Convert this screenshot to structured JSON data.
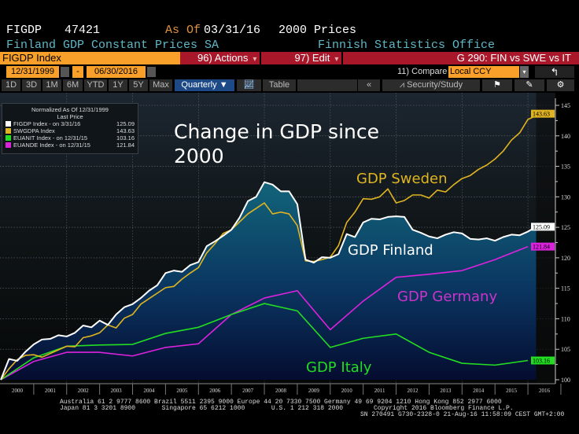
{
  "header": {
    "ticker": "FIGDP",
    "value": "47421",
    "as_of_label": "As Of",
    "as_of_date": "03/31/16",
    "price_basis": "2000 Prices",
    "description": "Finland GDP Constant Prices SA",
    "source": "Finnish Statistics Office"
  },
  "command_bar": {
    "security": "FIGDP Index",
    "actions": "96) Actions",
    "edit": "97) Edit",
    "chart_title": "G 290: FIN vs SWE vs IT"
  },
  "date_bar": {
    "start_date": "12/31/1999",
    "separator": "-",
    "end_date": "06/30/2016",
    "compare_label": "11) Compare",
    "currency": "Local CCY"
  },
  "toolbar": {
    "periods": [
      "1D",
      "3D",
      "1M",
      "6M",
      "YTD",
      "1Y",
      "5Y",
      "Max"
    ],
    "frequency": "Quarterly",
    "table_label": "Table",
    "collapse_label": "«",
    "security_study": "Security/Study"
  },
  "legend": {
    "title": "Normalized As Of 12/31/1999",
    "subtitle": "Last Price",
    "items": [
      {
        "name": "FIGDP Index -  on 3/31/16",
        "value": "125.09",
        "color": "#ffffff"
      },
      {
        "name": "SWGDPA Index",
        "value": "143.63",
        "color": "#e0b420"
      },
      {
        "name": "EUANIT Index -  on 12/31/15",
        "value": "103.16",
        "color": "#22dd22"
      },
      {
        "name": "EUANDE Index -  on 12/31/15",
        "value": "121.84",
        "color": "#dd22dd"
      }
    ]
  },
  "annotations": {
    "title_line1": "Change in GDP since",
    "title_line2": "2000",
    "sweden": "GDP Sweden",
    "finland": "GDP Finland",
    "germany": "GDP Germany",
    "italy": "GDP Italy"
  },
  "chart_data": {
    "type": "line",
    "ylim": [
      100,
      145
    ],
    "yticks": [
      100,
      105,
      110,
      115,
      120,
      125,
      130,
      135,
      140,
      145
    ],
    "xtick_labels": [
      "2000",
      "2001",
      "2002",
      "2003",
      "2004",
      "2005",
      "2006",
      "2007",
      "2008",
      "2009",
      "2010",
      "2011",
      "2012",
      "2013",
      "2014",
      "2015",
      "2016"
    ],
    "grid": true,
    "legend_position": "top-left",
    "quarters": [
      "1999Q4",
      "2000Q1",
      "2000Q2",
      "2000Q3",
      "2000Q4",
      "2001Q1",
      "2001Q2",
      "2001Q3",
      "2001Q4",
      "2002Q1",
      "2002Q2",
      "2002Q3",
      "2002Q4",
      "2003Q1",
      "2003Q2",
      "2003Q3",
      "2003Q4",
      "2004Q1",
      "2004Q2",
      "2004Q3",
      "2004Q4",
      "2005Q1",
      "2005Q2",
      "2005Q3",
      "2005Q4",
      "2006Q1",
      "2006Q2",
      "2006Q3",
      "2006Q4",
      "2007Q1",
      "2007Q2",
      "2007Q3",
      "2007Q4",
      "2008Q1",
      "2008Q2",
      "2008Q3",
      "2008Q4",
      "2009Q1",
      "2009Q2",
      "2009Q3",
      "2009Q4",
      "2010Q1",
      "2010Q2",
      "2010Q3",
      "2010Q4",
      "2011Q1",
      "2011Q2",
      "2011Q3",
      "2011Q4",
      "2012Q1",
      "2012Q2",
      "2012Q3",
      "2012Q4",
      "2013Q1",
      "2013Q2",
      "2013Q3",
      "2013Q4",
      "2014Q1",
      "2014Q2",
      "2014Q3",
      "2014Q4",
      "2015Q1",
      "2015Q2",
      "2015Q3",
      "2015Q4",
      "2016Q1",
      "2016Q2"
    ],
    "years_end": [
      "1999",
      "2000",
      "2001",
      "2002",
      "2003",
      "2004",
      "2005",
      "2006",
      "2007",
      "2008",
      "2009",
      "2010",
      "2011",
      "2012",
      "2013",
      "2014",
      "2015"
    ],
    "series": [
      {
        "name": "FIGDP Index",
        "color": "#ffffff",
        "frequency": "quarterly",
        "last_label": "125.09",
        "values": [
          100,
          103.4,
          103.1,
          104.6,
          105.8,
          106.6,
          106.7,
          107.3,
          107.1,
          107.7,
          108.9,
          108.6,
          109.7,
          109.0,
          110.7,
          111.9,
          112.4,
          113.4,
          114.6,
          115.5,
          117.5,
          117.9,
          117.7,
          118.8,
          119.3,
          121.9,
          122.7,
          123.6,
          124.6,
          126.6,
          129.3,
          130.0,
          132.4,
          132.0,
          130.9,
          130.9,
          128.8,
          119.7,
          119.2,
          120.1,
          120.0,
          120.6,
          123.9,
          123.4,
          125.8,
          126.4,
          126.3,
          126.7,
          126.8,
          126.7,
          124.6,
          124.1,
          123.5,
          123.2,
          123.8,
          124.2,
          124.0,
          123.1,
          123.0,
          123.2,
          122.8,
          123.4,
          123.8,
          123.7,
          124.3,
          125.09
        ]
      },
      {
        "name": "SWGDPA Index",
        "color": "#e0b420",
        "frequency": "quarterly",
        "last_label": "143.63",
        "values": [
          100,
          101.8,
          103.3,
          104.0,
          104.1,
          103.7,
          104.3,
          104.9,
          105.5,
          105.4,
          106.9,
          107.2,
          107.7,
          109.0,
          108.5,
          110.1,
          110.7,
          112.4,
          113.3,
          114.2,
          115.1,
          115.3,
          116.5,
          117.5,
          118.4,
          120.8,
          122.3,
          124.0,
          124.6,
          125.9,
          127.2,
          128.1,
          129.0,
          127.2,
          127.5,
          127.2,
          125.3,
          119.5,
          119.4,
          119.7,
          120.1,
          122.0,
          125.8,
          127.5,
          129.7,
          129.6,
          130.0,
          131.3,
          129.0,
          129.4,
          130.3,
          130.3,
          129.8,
          131.1,
          130.8,
          132.0,
          133.0,
          133.5,
          134.5,
          135.2,
          136.2,
          137.5,
          139.3,
          140.5,
          142.7,
          143.3,
          143.63
        ]
      },
      {
        "name": "EUANIT Index",
        "color": "#22dd22",
        "frequency": "annual",
        "last_label": "103.16",
        "values": [
          100,
          103.6,
          105.5,
          105.7,
          105.8,
          107.6,
          108.6,
          110.7,
          112.5,
          111.3,
          105.3,
          106.8,
          107.5,
          104.5,
          102.7,
          102.4,
          103.16
        ]
      },
      {
        "name": "EUANDE Index",
        "color": "#dd22dd",
        "frequency": "annual",
        "last_label": "121.84",
        "values": [
          100,
          103.0,
          104.5,
          104.5,
          103.9,
          105.3,
          105.9,
          110.7,
          113.4,
          114.6,
          108.2,
          112.9,
          116.8,
          117.3,
          117.9,
          119.7,
          121.84
        ]
      }
    ]
  },
  "footer": {
    "line1": "Australia 61 2 9777 8600 Brazil 5511 2395 9000 Europe 44 20 7330 7500 Germany 49 69 9204 1210 Hong Kong 852 2977 6000",
    "line2a": "Japan 81 3 3201 8900       Singapore 65 6212 1000       U.S. 1 212 318 2000",
    "line2b": "Copyright 2016 Bloomberg Finance L.P.",
    "line3": "SN 270491 G730-2328-0 21-Aug-16 11:58:09 CEST GMT+2:00"
  }
}
